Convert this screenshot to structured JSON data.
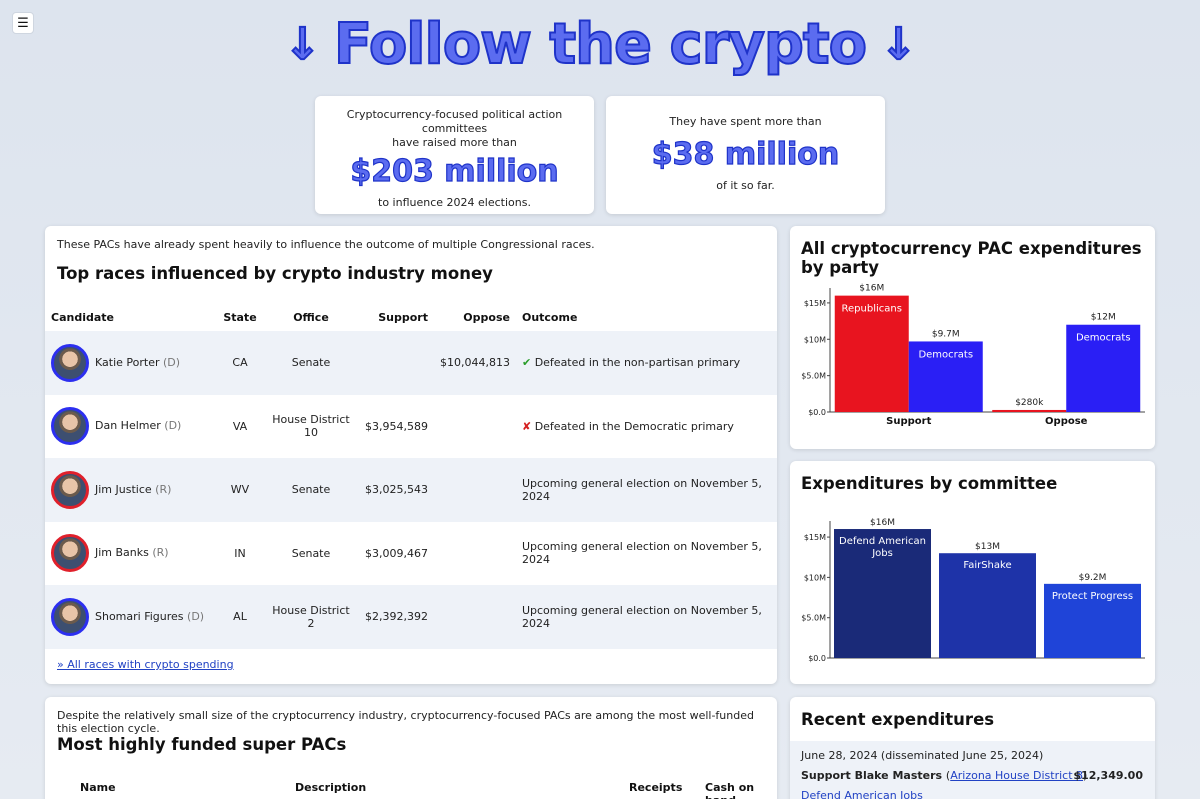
{
  "header": {
    "title": "Follow the crypto",
    "arrow": "↓"
  },
  "stats": [
    {
      "pre_line1": "Cryptocurrency-focused political action committees",
      "pre_line2": "have raised more than",
      "value": "$203 million",
      "post": "to influence 2024 elections."
    },
    {
      "pre_line1": "They have spent more than",
      "pre_line2": "",
      "value": "$38 million",
      "post": "of it so far."
    }
  ],
  "races": {
    "intro": "These PACs have already spent heavily to influence the outcome of multiple Congressional races.",
    "title": "Top races influenced by crypto industry money",
    "columns": [
      "Candidate",
      "State",
      "Office",
      "Support",
      "Oppose",
      "Outcome"
    ],
    "rows": [
      {
        "name": "Katie Porter",
        "party": "(D)",
        "state": "CA",
        "office": "Senate",
        "support": "",
        "oppose": "$10,044,813",
        "mark": "✔",
        "outcome": "Defeated in the non-partisan primary"
      },
      {
        "name": "Dan Helmer",
        "party": "(D)",
        "state": "VA",
        "office": "House District 10",
        "support": "$3,954,589",
        "oppose": "",
        "mark": "✘",
        "outcome": "Defeated in the Democratic primary"
      },
      {
        "name": "Jim Justice",
        "party": "(R)",
        "state": "WV",
        "office": "Senate",
        "support": "$3,025,543",
        "oppose": "",
        "mark": "",
        "outcome": "Upcoming general election on November 5, 2024"
      },
      {
        "name": "Jim Banks",
        "party": "(R)",
        "state": "IN",
        "office": "Senate",
        "support": "$3,009,467",
        "oppose": "",
        "mark": "",
        "outcome": "Upcoming general election on November 5, 2024"
      },
      {
        "name": "Shomari Figures",
        "party": "(D)",
        "state": "AL",
        "office": "House District 2",
        "support": "$2,392,392",
        "oppose": "",
        "mark": "",
        "outcome": "Upcoming general election on November 5, 2024"
      }
    ],
    "all_link": "» All races with crypto spending"
  },
  "pacs": {
    "intro": "Despite the relatively small size of the cryptocurrency industry, cryptocurrency-focused PACs are among the most well-funded this election cycle.",
    "title": "Most highly funded super PACs",
    "columns": [
      "Name",
      "Description",
      "Receipts",
      "Cash on hand"
    ]
  },
  "colors": {
    "republican": "#e8141f",
    "democrat": "#2a1ff5",
    "committee1": "#1a2a78",
    "committee2": "#1e33a8",
    "committee3": "#1f44d8",
    "accent": "#1f33c9"
  },
  "chart_data": [
    {
      "type": "bar",
      "title": "All cryptocurrency PAC expenditures by party",
      "categories": [
        "Support",
        "Oppose"
      ],
      "series": [
        {
          "name": "Republicans",
          "values": [
            16,
            0.28
          ],
          "labels": [
            "$16M",
            "$280k"
          ]
        },
        {
          "name": "Democrats",
          "values": [
            9.7,
            12
          ],
          "labels": [
            "$9.7M",
            "$12M"
          ]
        }
      ],
      "yticks": [
        "$0.0",
        "$5.0M",
        "$10M",
        "$15M"
      ],
      "ylim": [
        0,
        16.5
      ]
    },
    {
      "type": "bar",
      "title": "Expenditures by committee",
      "categories": [
        "Defend American Jobs",
        "FairShake",
        "Protect Progress"
      ],
      "values": [
        16,
        13,
        9.2
      ],
      "labels": [
        "$16M",
        "$13M",
        "$9.2M"
      ],
      "yticks": [
        "$0.0",
        "$5.0M",
        "$10M",
        "$15M"
      ],
      "ylim": [
        0,
        16.5
      ]
    }
  ],
  "recent": {
    "title": "Recent expenditures",
    "date": "June 28, 2024 (disseminated June 25, 2024)",
    "label": "Support Blake Masters",
    "race": "Arizona House District 8",
    "amount": "$12,349.00",
    "committee": "Defend American Jobs"
  }
}
